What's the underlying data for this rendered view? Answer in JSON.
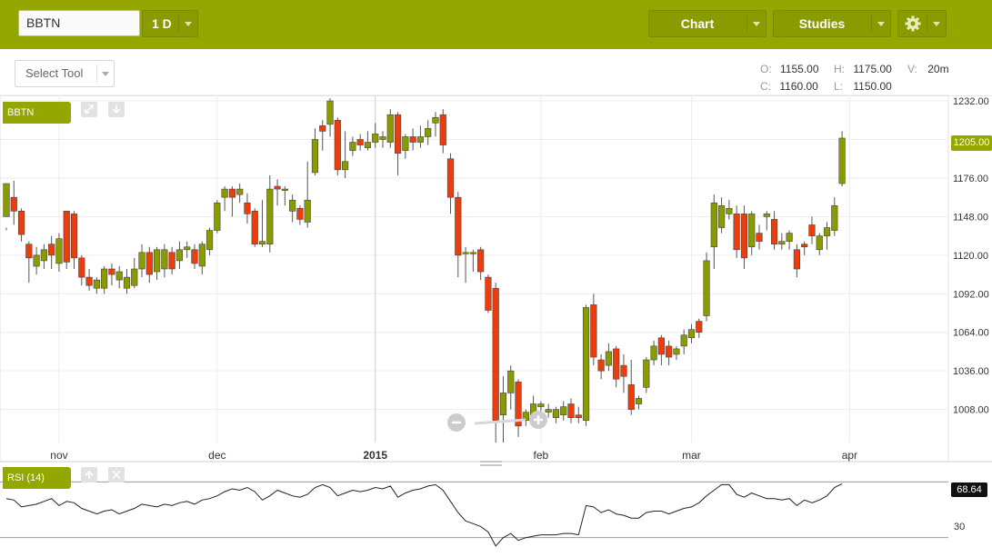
{
  "toolbar": {
    "symbol": "BBTN",
    "interval": "1 D",
    "chart_label": "Chart",
    "studies_label": "Studies",
    "settings_icon": "gear-icon"
  },
  "tools": {
    "select_tool": "Select Tool"
  },
  "ohlc": {
    "o_label": "O:",
    "o_value": "1155.00",
    "h_label": "H:",
    "h_value": "1175.00",
    "v_label": "V:",
    "v_value": "20m",
    "c_label": "C:",
    "c_value": "1160.00",
    "l_label": "L:",
    "l_value": "1150.00"
  },
  "panels": {
    "main_label": "BBTN",
    "rsi_label": "RSI (14)",
    "rsi_value": "68.64",
    "rsi_level": "30",
    "last_price": "1205.00"
  },
  "chart_data": [
    {
      "type": "candlestick",
      "title": "",
      "ylim": [
        984,
        1236
      ],
      "yticks": [
        "1232.00",
        "1204.00",
        "1176.00",
        "1148.00",
        "1120.00",
        "1092.00",
        "1064.00",
        "1036.00",
        "1008.00"
      ],
      "yticks_values": [
        1232,
        1204,
        1176,
        1148,
        1120,
        1092,
        1064,
        1036,
        1008
      ],
      "last_price": 1205,
      "xticks": [
        "nov",
        "dec",
        "2015",
        "feb",
        "mar",
        "apr"
      ],
      "candles": [
        [
          1148,
          1172,
          1140,
          1138
        ],
        [
          1162,
          1152,
          1174,
          1142
        ],
        [
          1152,
          1135,
          1154,
          1130
        ],
        [
          1128,
          1118,
          1130,
          1100
        ],
        [
          1112,
          1120,
          1126,
          1106
        ],
        [
          1116,
          1124,
          1128,
          1110
        ],
        [
          1128,
          1120,
          1134,
          1110
        ],
        [
          1114,
          1132,
          1136,
          1108
        ],
        [
          1152,
          1115,
          1152,
          1110
        ],
        [
          1150,
          1118,
          1152,
          1110
        ],
        [
          1118,
          1104,
          1120,
          1098
        ],
        [
          1104,
          1098,
          1110,
          1094
        ],
        [
          1096,
          1102,
          1104,
          1092
        ],
        [
          1096,
          1110,
          1112,
          1092
        ],
        [
          1110,
          1106,
          1114,
          1098
        ],
        [
          1102,
          1108,
          1112,
          1096
        ],
        [
          1096,
          1104,
          1110,
          1092
        ],
        [
          1098,
          1110,
          1118,
          1096
        ],
        [
          1110,
          1122,
          1128,
          1104
        ],
        [
          1122,
          1106,
          1126,
          1100
        ],
        [
          1108,
          1124,
          1126,
          1102
        ],
        [
          1110,
          1124,
          1128,
          1104
        ],
        [
          1122,
          1110,
          1126,
          1106
        ],
        [
          1116,
          1124,
          1130,
          1110
        ],
        [
          1124,
          1126,
          1130,
          1118
        ],
        [
          1124,
          1114,
          1128,
          1110
        ],
        [
          1112,
          1128,
          1130,
          1106
        ],
        [
          1124,
          1138,
          1140,
          1120
        ],
        [
          1138,
          1158,
          1160,
          1136
        ],
        [
          1162,
          1168,
          1170,
          1152
        ],
        [
          1168,
          1162,
          1170,
          1148
        ],
        [
          1164,
          1168,
          1172,
          1158
        ],
        [
          1158,
          1150,
          1165,
          1143
        ],
        [
          1152,
          1128,
          1154,
          1126
        ],
        [
          1128,
          1130,
          1160,
          1126
        ],
        [
          1128,
          1168,
          1178,
          1122
        ],
        [
          1170,
          1168,
          1175,
          1156
        ],
        [
          1168,
          1168,
          1170,
          1156
        ],
        [
          1152,
          1160,
          1164,
          1144
        ],
        [
          1154,
          1146,
          1156,
          1142
        ],
        [
          1144,
          1160,
          1188,
          1140
        ],
        [
          1180,
          1204,
          1212,
          1178
        ],
        [
          1214,
          1210,
          1218,
          1196
        ],
        [
          1215,
          1232,
          1234,
          1206
        ],
        [
          1218,
          1182,
          1220,
          1178
        ],
        [
          1182,
          1188,
          1210,
          1176
        ],
        [
          1196,
          1202,
          1206,
          1192
        ],
        [
          1204,
          1200,
          1208,
          1196
        ],
        [
          1198,
          1202,
          1210,
          1196
        ],
        [
          1202,
          1208,
          1216,
          1198
        ],
        [
          1204,
          1206,
          1210,
          1198
        ],
        [
          1202,
          1222,
          1226,
          1198
        ],
        [
          1222,
          1194,
          1224,
          1178
        ],
        [
          1196,
          1206,
          1208,
          1190
        ],
        [
          1206,
          1202,
          1212,
          1196
        ],
        [
          1202,
          1206,
          1214,
          1198
        ],
        [
          1206,
          1212,
          1218,
          1200
        ],
        [
          1216,
          1220,
          1224,
          1206
        ],
        [
          1222,
          1200,
          1226,
          1194
        ],
        [
          1190,
          1162,
          1194,
          1150
        ],
        [
          1162,
          1120,
          1166,
          1104
        ],
        [
          1122,
          1122,
          1126,
          1100
        ],
        [
          1122,
          1122,
          1124,
          1108
        ],
        [
          1124,
          1108,
          1126,
          1102
        ],
        [
          1104,
          1080,
          1106,
          1078
        ],
        [
          1096,
          1000,
          1100,
          984
        ],
        [
          1004,
          1020,
          1032,
          984
        ],
        [
          1020,
          1036,
          1040,
          1008
        ],
        [
          1028,
          996,
          1030,
          988
        ],
        [
          1000,
          1006,
          1008,
          996
        ],
        [
          1004,
          1012,
          1018,
          998
        ],
        [
          1010,
          1012,
          1014,
          1004
        ],
        [
          1006,
          1008,
          1012,
          1002
        ],
        [
          1002,
          1008,
          1010,
          998
        ],
        [
          1004,
          1010,
          1014,
          1000
        ],
        [
          1012,
          1002,
          1016,
          998
        ],
        [
          1004,
          1002,
          1010,
          998
        ],
        [
          1000,
          1082,
          1084,
          996
        ],
        [
          1084,
          1046,
          1092,
          1040
        ],
        [
          1044,
          1036,
          1048,
          1030
        ],
        [
          1040,
          1050,
          1056,
          1036
        ],
        [
          1052,
          1030,
          1054,
          1024
        ],
        [
          1040,
          1032,
          1048,
          1020
        ],
        [
          1026,
          1008,
          1044,
          1004
        ],
        [
          1012,
          1016,
          1018,
          1008
        ],
        [
          1024,
          1044,
          1046,
          1020
        ],
        [
          1044,
          1054,
          1058,
          1040
        ],
        [
          1060,
          1048,
          1062,
          1040
        ],
        [
          1054,
          1046,
          1058,
          1040
        ],
        [
          1048,
          1052,
          1054,
          1044
        ],
        [
          1054,
          1062,
          1066,
          1048
        ],
        [
          1060,
          1066,
          1070,
          1056
        ],
        [
          1072,
          1064,
          1074,
          1060
        ],
        [
          1076,
          1116,
          1122,
          1072
        ],
        [
          1126,
          1158,
          1164,
          1110
        ],
        [
          1140,
          1156,
          1162,
          1136
        ],
        [
          1150,
          1154,
          1160,
          1146
        ],
        [
          1150,
          1124,
          1156,
          1118
        ],
        [
          1150,
          1118,
          1156,
          1110
        ],
        [
          1126,
          1150,
          1152,
          1120
        ],
        [
          1136,
          1130,
          1142,
          1124
        ],
        [
          1148,
          1150,
          1152,
          1138
        ],
        [
          1146,
          1128,
          1152,
          1124
        ],
        [
          1128,
          1130,
          1136,
          1124
        ],
        [
          1130,
          1136,
          1138,
          1124
        ],
        [
          1124,
          1110,
          1128,
          1104
        ],
        [
          1128,
          1126,
          1130,
          1120
        ],
        [
          1142,
          1134,
          1148,
          1128
        ],
        [
          1124,
          1134,
          1136,
          1120
        ],
        [
          1134,
          1140,
          1144,
          1124
        ],
        [
          1138,
          1156,
          1162,
          1134
        ],
        [
          1172,
          1205,
          1210,
          1170
        ]
      ]
    },
    {
      "type": "line",
      "title": "",
      "ylim": [
        20,
        80
      ],
      "levels": [
        70,
        30
      ],
      "values": [
        58,
        57,
        52,
        53,
        54,
        56,
        58,
        53,
        56,
        55,
        51,
        49,
        47,
        49,
        50,
        47,
        49,
        51,
        54,
        53,
        52,
        54,
        53,
        55,
        56,
        54,
        57,
        58,
        60,
        63,
        65,
        64,
        66,
        63,
        57,
        60,
        64,
        62,
        60,
        59,
        61,
        66,
        68,
        66,
        60,
        62,
        64,
        63,
        64,
        66,
        65,
        67,
        59,
        62,
        64,
        65,
        67,
        68,
        64,
        56,
        48,
        42,
        40,
        38,
        34,
        24,
        30,
        33,
        28,
        30,
        31,
        32,
        32,
        32,
        33,
        33,
        32,
        53,
        52,
        48,
        50,
        47,
        46,
        44,
        44,
        48,
        49,
        49,
        47,
        49,
        51,
        52,
        55,
        60,
        64,
        68,
        68,
        61,
        59,
        62,
        60,
        58,
        58,
        57,
        58,
        53,
        57,
        55,
        57,
        60,
        66,
        68.64
      ]
    }
  ]
}
